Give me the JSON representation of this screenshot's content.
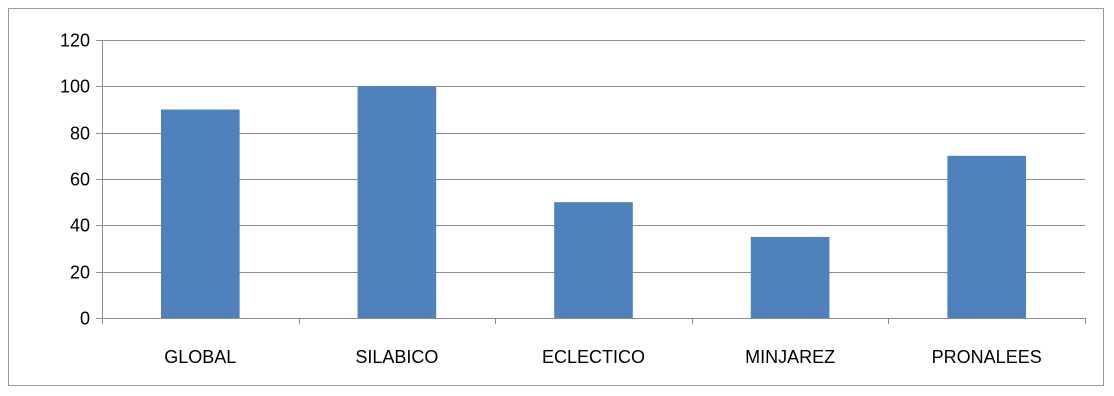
{
  "chart_data": {
    "type": "bar",
    "categories": [
      "GLOBAL",
      "SILABICO",
      "ECLECTICO",
      "MINJAREZ",
      "PRONALEES"
    ],
    "values": [
      90,
      100,
      50,
      35,
      70
    ],
    "ylim": [
      0,
      120
    ],
    "yticks": [
      0,
      20,
      40,
      60,
      80,
      100,
      120
    ],
    "grid": true,
    "legend": "none",
    "bar_color": "#4f81bd",
    "grid_color": "#8c8c8c"
  }
}
